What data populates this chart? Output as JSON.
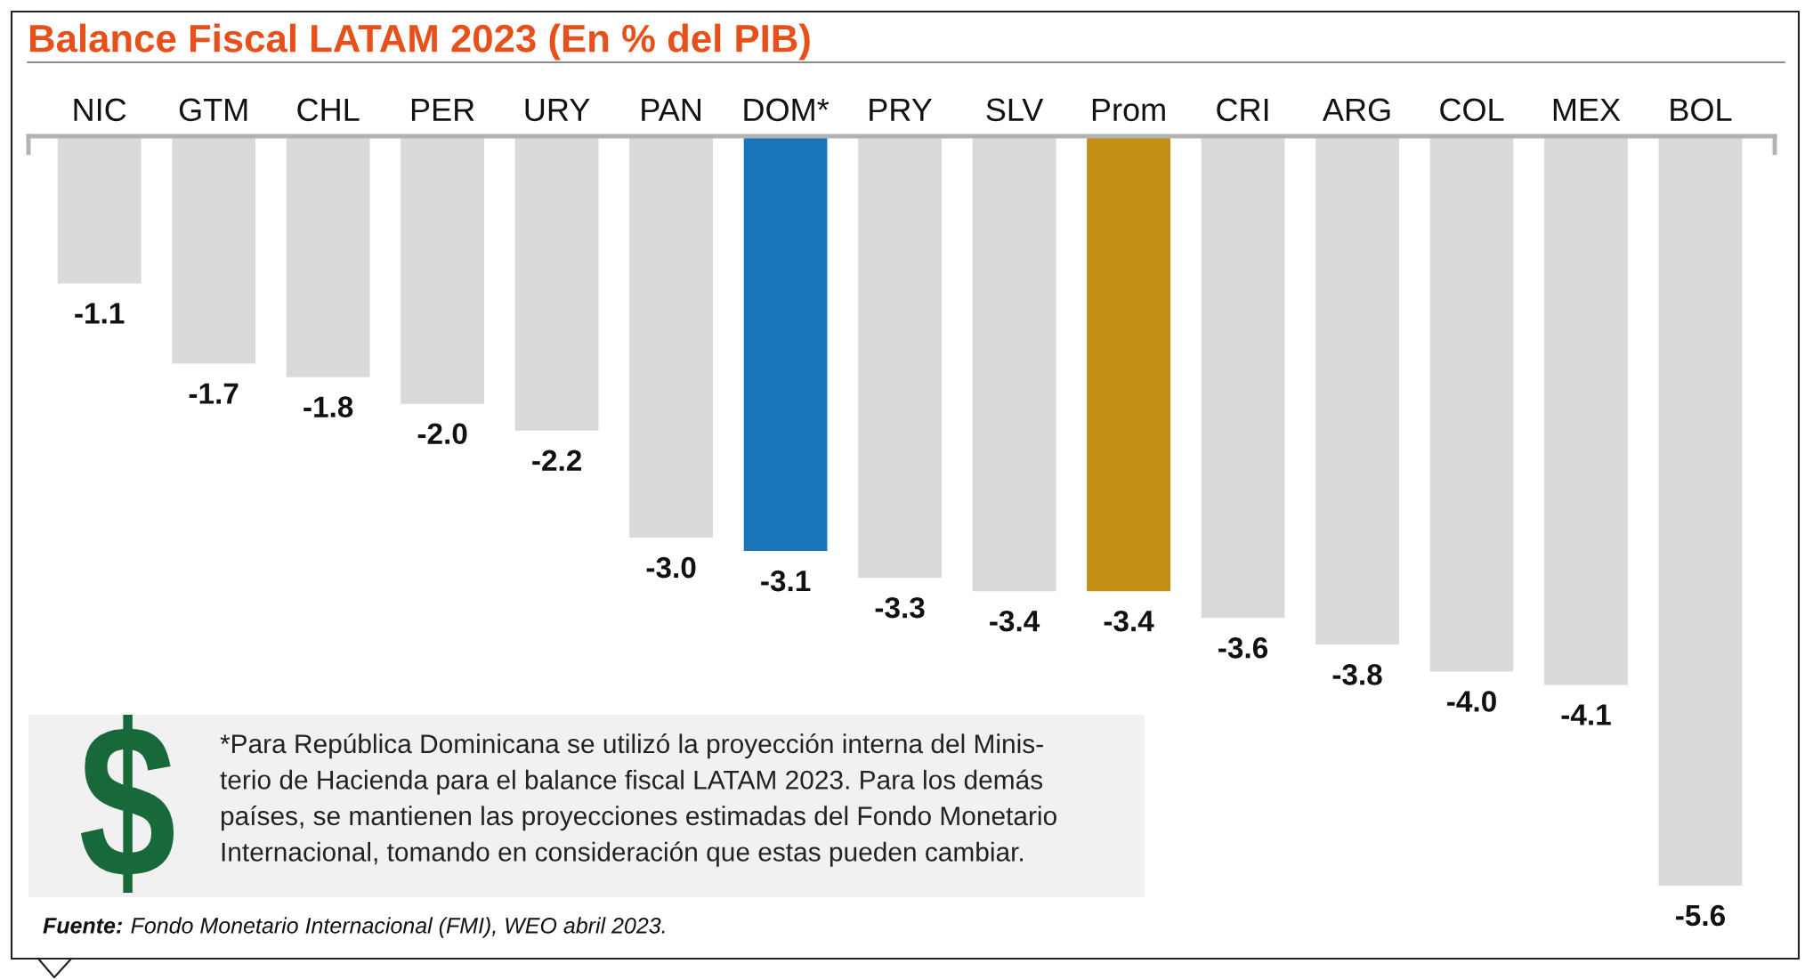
{
  "chart_data": {
    "type": "bar",
    "title": "Balance Fiscal LATAM 2023 (En % del PIB)",
    "categories": [
      "NIC",
      "GTM",
      "CHL",
      "PER",
      "URY",
      "PAN",
      "DOM*",
      "PRY",
      "SLV",
      "Prom",
      "CRI",
      "ARG",
      "COL",
      "MEX",
      "BOL"
    ],
    "values": [
      -1.1,
      -1.7,
      -1.8,
      -2.0,
      -2.2,
      -3.0,
      -3.1,
      -3.3,
      -3.4,
      -3.4,
      -3.6,
      -3.8,
      -4.0,
      -4.1,
      -5.6
    ],
    "colors": [
      "#dadadb",
      "#dadadb",
      "#dadadb",
      "#dadadb",
      "#dadadb",
      "#dadadb",
      "#1b75b9",
      "#dadadb",
      "#dadadb",
      "#c28f14",
      "#dadadb",
      "#dadadb",
      "#dadadb",
      "#dadadb",
      "#dadadb"
    ],
    "value_labels": [
      "-1.1",
      "-1.7",
      "-1.8",
      "-2.0",
      "-2.2",
      "-3.0",
      "-3.1",
      "-3.3",
      "-3.4",
      "-3.4",
      "-3.6",
      "-3.8",
      "-4.0",
      "-4.1",
      "-5.6"
    ],
    "tick_labels": "x",
    "annotations": [
      "*Para República Dominicana se utilizó la proyección interna del Minis-\nterio de Hacienda para el balance fiscal LATAM 2023. Para los demás\npaíses, se mantienen las proyecciones estimadas del Fondo Monetario\nInternacional, tomando en consideración que estas pueden cambiar.",
      "Fuente:",
      "Fondo Monetario Internacional (FMI), WEO abril 2023."
    ]
  }
}
